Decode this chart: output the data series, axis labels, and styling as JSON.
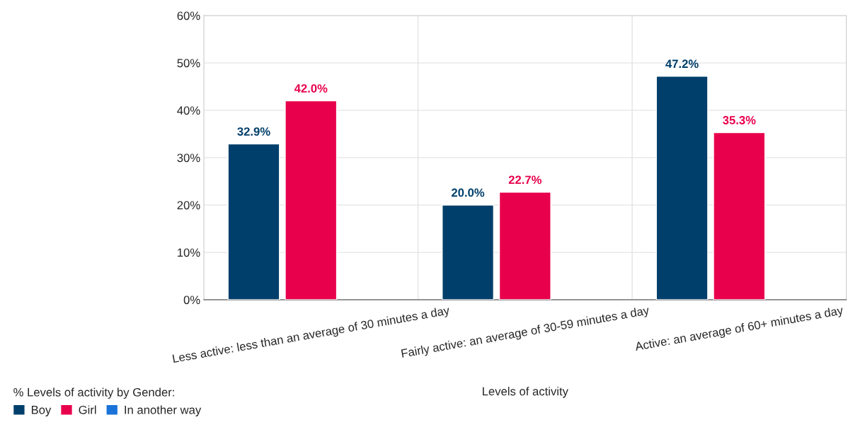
{
  "chart_data": {
    "type": "bar",
    "xlabel": "Levels of activity",
    "legend_title": "% Levels of activity by Gender:",
    "categories": [
      "Less active: less than an average of 30 minutes a day",
      "Fairly active: an average of 30-59 minutes a day",
      "Active: an average of 60+ minutes a day"
    ],
    "series": [
      {
        "name": "Boy",
        "color": "#003f6b",
        "values": [
          32.9,
          20.0,
          47.2
        ],
        "value_labels": [
          "32.9%",
          "20.0%",
          "47.2%"
        ]
      },
      {
        "name": "Girl",
        "color": "#e8004c",
        "values": [
          42.0,
          22.7,
          35.3
        ],
        "value_labels": [
          "42.0%",
          "22.7%",
          "35.3%"
        ]
      },
      {
        "name": "In another way",
        "color": "#1a73d9",
        "values": [
          null,
          null,
          null
        ]
      }
    ],
    "ylim": [
      0,
      60
    ],
    "yticks": [
      {
        "value": 0,
        "label": "0%"
      },
      {
        "value": 10,
        "label": "10%"
      },
      {
        "value": 20,
        "label": "20%"
      },
      {
        "value": 30,
        "label": "30%"
      },
      {
        "value": 40,
        "label": "40%"
      },
      {
        "value": 50,
        "label": "50%"
      },
      {
        "value": 60,
        "label": "60%"
      }
    ],
    "grid": true,
    "legend": "bottom left"
  }
}
